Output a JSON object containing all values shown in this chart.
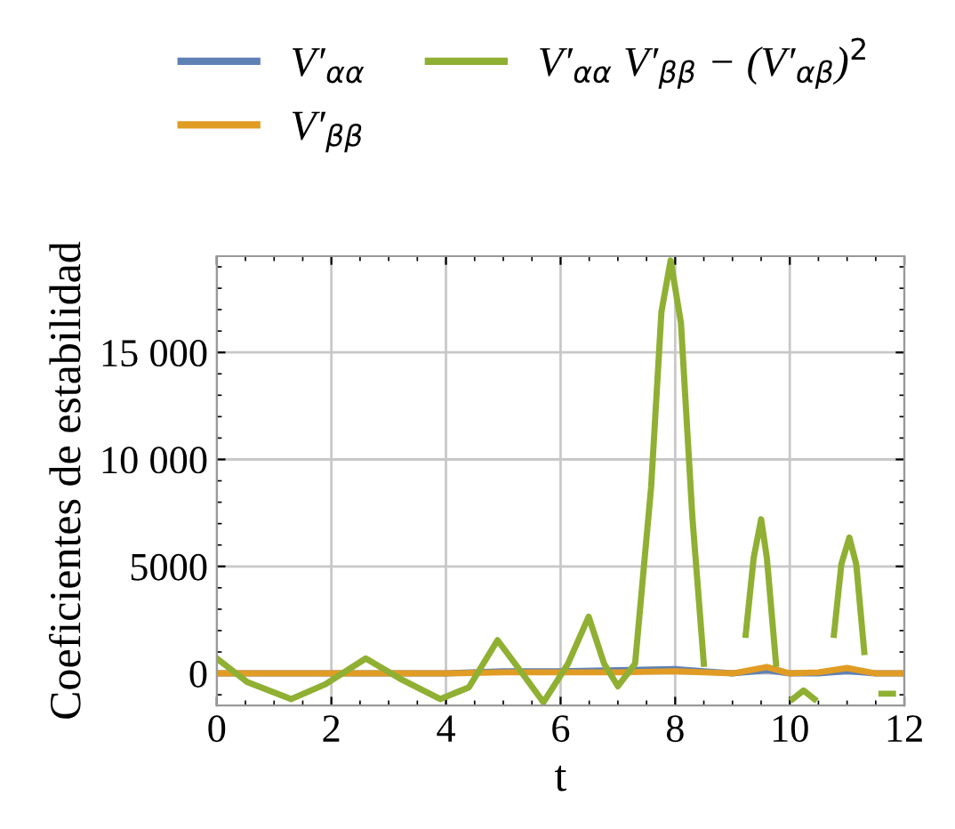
{
  "chart_data": {
    "type": "line",
    "xlabel": "t",
    "ylabel": "Coeficientes de estabilidad",
    "xlim": [
      0,
      12
    ],
    "xticks": [
      0,
      2,
      4,
      6,
      8,
      10,
      12
    ],
    "ylim": [
      -1500,
      19500
    ],
    "yticks": [
      0,
      5000,
      {
        "value": 10000,
        "label": "10 000"
      },
      {
        "value": 15000,
        "label": "15 000"
      }
    ],
    "grid": true,
    "legend": "top",
    "series": [
      {
        "name": "V′$_{αα}$",
        "color": "#5e81b5",
        "x": [
          0,
          2,
          4,
          5,
          6,
          7,
          8,
          8.5,
          9,
          9.6,
          10,
          10.5,
          11,
          11.5,
          12
        ],
        "values": [
          0,
          0,
          0,
          100,
          100,
          150,
          200,
          100,
          0,
          150,
          0,
          0,
          100,
          0,
          0
        ]
      },
      {
        "name": "V′$_{ββ}$",
        "color": "#e19c24",
        "x": [
          0,
          2,
          4,
          5,
          6,
          7,
          8,
          8.5,
          9,
          9.6,
          10,
          10.5,
          11,
          11.5,
          12
        ],
        "values": [
          0,
          0,
          0,
          50,
          50,
          50,
          100,
          50,
          0,
          300,
          0,
          50,
          250,
          0,
          0
        ]
      },
      {
        "name": "V′$_{αα}$ V′$_{ββ}$ − (V′$_{αβ}$)$^{2}$",
        "color": "#8fb032",
        "x": [
          0,
          0.53,
          1.3,
          1.9,
          2.6,
          3.2,
          3.9,
          4.4,
          4.9,
          5.36,
          5.7,
          6.13,
          6.49,
          6.76,
          7.0,
          7.3,
          7.58,
          7.76,
          7.92,
          8.1,
          8.3,
          8.5,
          8.65,
          8.98,
          9.23,
          9.37,
          9.5,
          9.6,
          9.76,
          9.9,
          10.05,
          10.24,
          10.43,
          10.57,
          10.77,
          10.9,
          11.04,
          11.16,
          11.3,
          11.45,
          11.6,
          11.8
        ],
        "values": [
          700,
          -400,
          -1200,
          -500,
          700,
          -250,
          -1200,
          -650,
          1550,
          -100,
          -1350,
          450,
          2650,
          450,
          -600,
          450,
          8700,
          16900,
          19300,
          16400,
          7300,
          450,
          null,
          null,
          1800,
          5400,
          7200,
          5400,
          450,
          null,
          -1200,
          -800,
          -1200,
          null,
          1800,
          5100,
          6350,
          5100,
          1000,
          null,
          -950,
          -950
        ]
      }
    ]
  }
}
